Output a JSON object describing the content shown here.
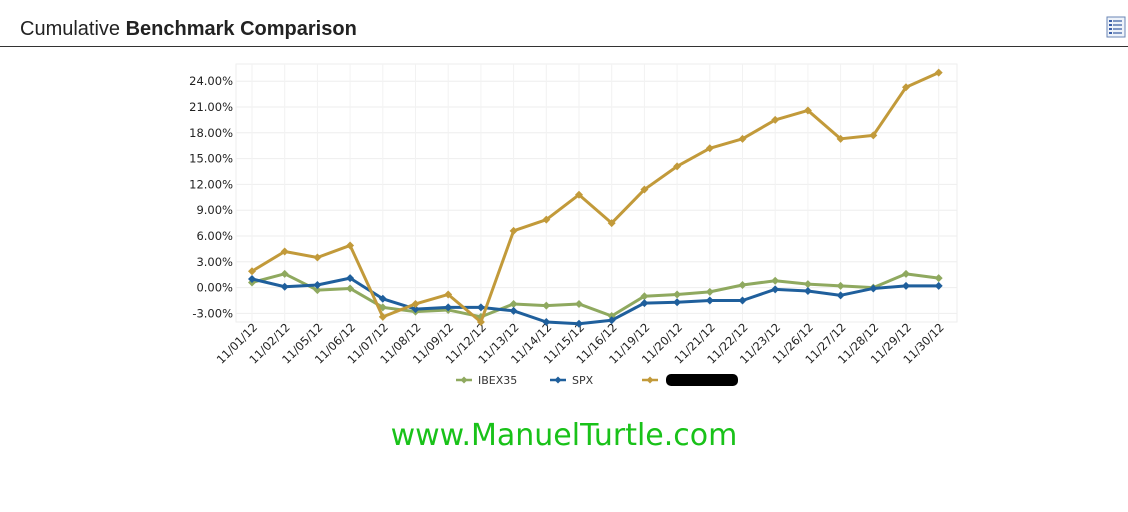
{
  "header": {
    "title_prefix": "Cumulative ",
    "title_bold": "Benchmark Comparison",
    "menu_icon": "list-report-icon"
  },
  "watermark": "www.ManuelTurtle.com",
  "colors": {
    "IBEX35": "#8fa95f",
    "SPX": "#1f5f9c",
    "Redacted": "#c29a3a"
  },
  "chart_data": {
    "type": "line",
    "title": "Cumulative Benchmark Comparison",
    "categories": [
      "11/01/12",
      "11/02/12",
      "11/05/12",
      "11/06/12",
      "11/07/12",
      "11/08/12",
      "11/09/12",
      "11/12/12",
      "11/13/12",
      "11/14/12",
      "11/15/12",
      "11/16/12",
      "11/19/12",
      "11/20/12",
      "11/21/12",
      "11/22/12",
      "11/23/12",
      "11/26/12",
      "11/27/12",
      "11/28/12",
      "11/29/12",
      "11/30/12"
    ],
    "y_ticks": [
      "24.00%",
      "21.00%",
      "18.00%",
      "15.00%",
      "12.00%",
      "9.00%",
      "6.00%",
      "3.00%",
      "0.00%",
      "-3.00%"
    ],
    "ylim": [
      -4,
      26
    ],
    "grid": true,
    "legend_position": "bottom",
    "series": [
      {
        "name": "IBEX35",
        "values": [
          0.6,
          1.6,
          -0.3,
          -0.1,
          -2.3,
          -2.8,
          -2.6,
          -3.4,
          -1.9,
          -2.1,
          -1.9,
          -3.3,
          -1.0,
          -0.8,
          -0.5,
          0.3,
          0.8,
          0.4,
          0.2,
          0.0,
          1.6,
          1.1
        ]
      },
      {
        "name": "SPX",
        "values": [
          1.0,
          0.1,
          0.3,
          1.1,
          -1.3,
          -2.5,
          -2.3,
          -2.3,
          -2.7,
          -4.0,
          -4.2,
          -3.8,
          -1.8,
          -1.7,
          -1.5,
          -1.5,
          -0.2,
          -0.4,
          -0.9,
          -0.1,
          0.2,
          0.2
        ]
      },
      {
        "name": "",
        "values": [
          1.9,
          4.2,
          3.5,
          4.9,
          -3.4,
          -1.9,
          -0.8,
          -4.0,
          6.6,
          7.9,
          10.8,
          7.5,
          11.4,
          14.1,
          16.2,
          17.3,
          19.5,
          20.6,
          17.3,
          17.7,
          23.3,
          25.0
        ]
      }
    ],
    "legend": [
      "IBEX35",
      "SPX"
    ]
  }
}
